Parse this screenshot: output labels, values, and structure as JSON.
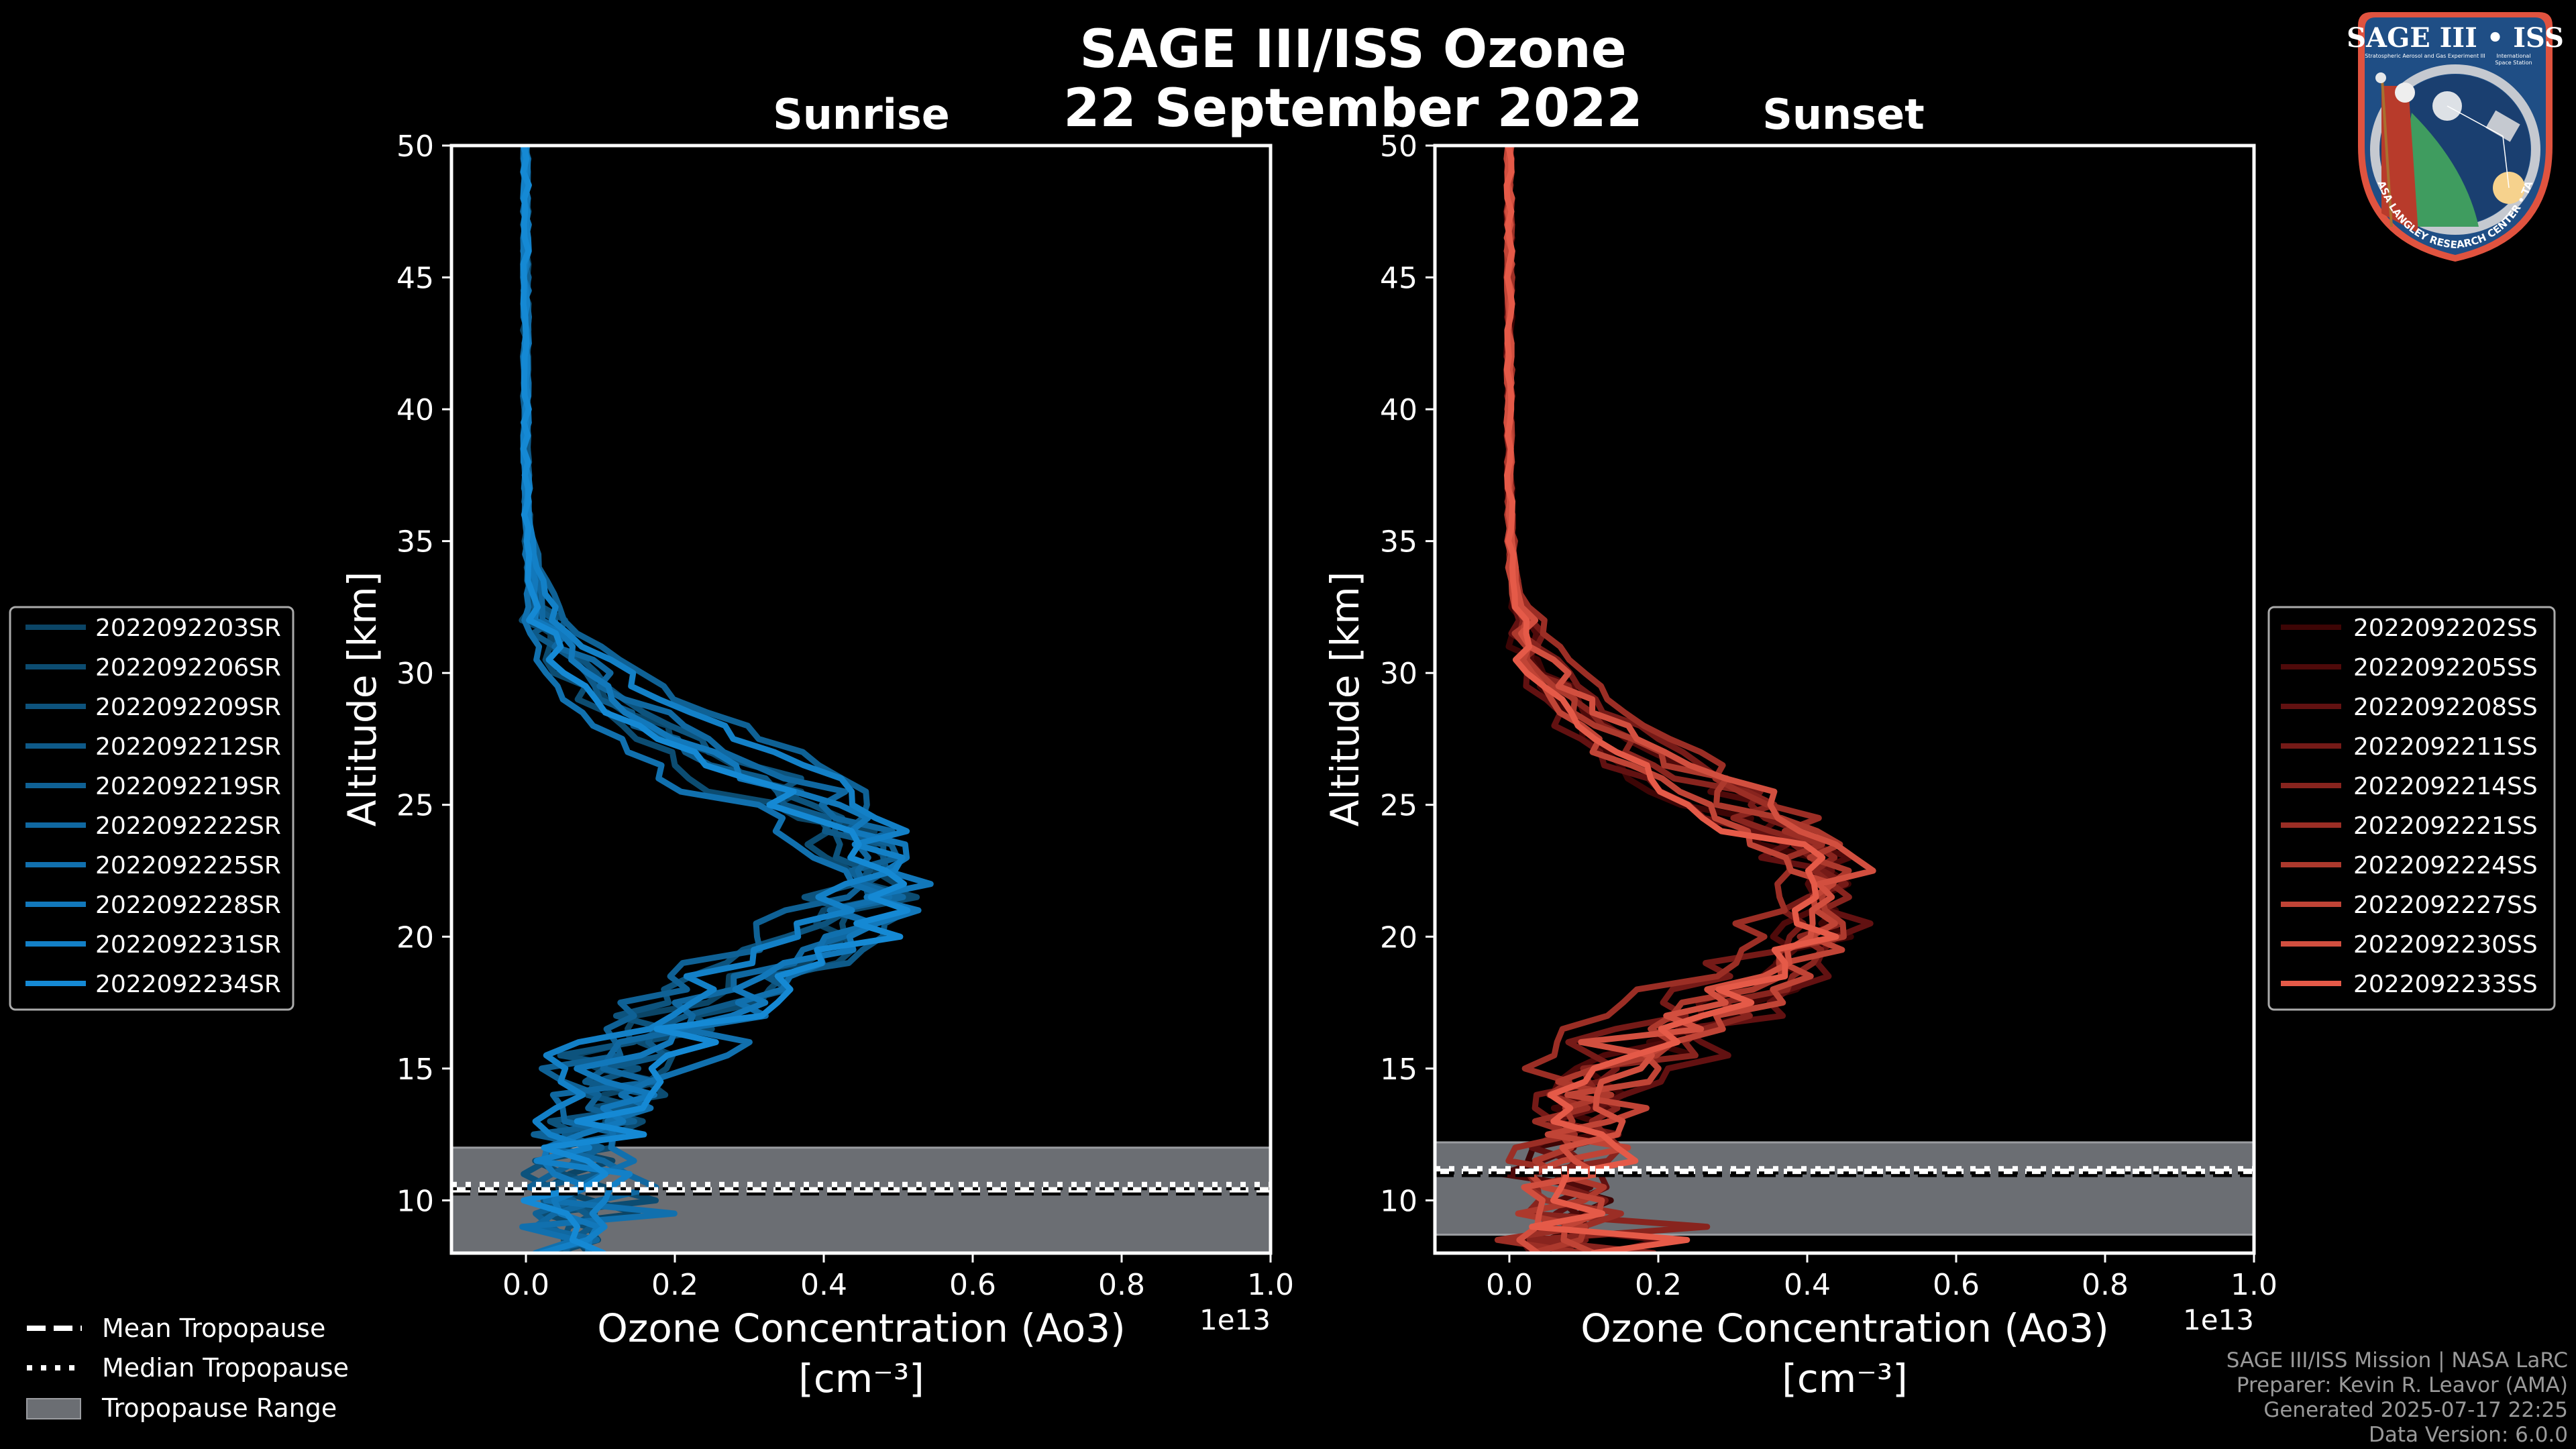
{
  "figure": {
    "title_line1": "SAGE III/ISS Ozone",
    "title_line2": "22 September 2022",
    "footer": [
      "SAGE III/ISS Mission | NASA LaRC",
      "Preparer: Kevin R. Leavor (AMA)",
      "Generated 2025-07-17 22:25",
      "Data Version: 6.0.0"
    ],
    "logo": {
      "title": "SAGE III • ISS",
      "left_caption": "Stratospheric Aerosol and Gas Experiment III",
      "right_caption_1": "International",
      "right_caption_2": "Space Station",
      "ring_text": "BALL • NASA LANGLEY RESEARCH CENTER • TAS-I • ESA"
    },
    "tropopause_legend": [
      {
        "label": "Mean Tropopause",
        "style": "dashed"
      },
      {
        "label": "Median Tropopause",
        "style": "dotted"
      },
      {
        "label": "Tropopause Range",
        "style": "patch"
      }
    ],
    "colors": {
      "background": "#000000",
      "tropopause_fill": "#6b6e73",
      "tropopause_edge": "#9a9ca0",
      "frame": "#ffffff"
    }
  },
  "chart_data": [
    {
      "type": "line",
      "id": "sunrise",
      "title": "Sunrise",
      "xlabel": "Ozone Concentration (Ao3)",
      "xlabel_units": "[cm⁻³]",
      "ylabel": "Altitude [km]",
      "x_offset_label": "1e13",
      "xlim": [
        -0.1,
        1.0
      ],
      "ylim": [
        8,
        50
      ],
      "xticks": [
        0.0,
        0.2,
        0.4,
        0.6,
        0.8,
        1.0
      ],
      "xtick_labels": [
        "0.0",
        "0.2",
        "0.4",
        "0.6",
        "0.8",
        "1.0"
      ],
      "yticks": [
        10,
        15,
        20,
        25,
        30,
        35,
        40,
        45,
        50
      ],
      "ytick_labels": [
        "10",
        "15",
        "20",
        "25",
        "30",
        "35",
        "40",
        "45",
        "50"
      ],
      "legend_position": "left",
      "tropopause": {
        "mean": 10.4,
        "median": 10.6,
        "range": [
          8.0,
          12.0
        ]
      },
      "series": [
        {
          "name": "2022092203SR",
          "color": "#0b4566",
          "peak_x": 0.46,
          "peak_alt": 22.5,
          "seed": 3
        },
        {
          "name": "2022092206SR",
          "color": "#0c4c71",
          "peak_x": 0.48,
          "peak_alt": 21.5,
          "seed": 6
        },
        {
          "name": "2022092209SR",
          "color": "#0d537d",
          "peak_x": 0.44,
          "peak_alt": 23.0,
          "seed": 9
        },
        {
          "name": "2022092212SR",
          "color": "#0e5a89",
          "peak_x": 0.5,
          "peak_alt": 22.0,
          "seed": 12
        },
        {
          "name": "2022092219SR",
          "color": "#0f6195",
          "peak_x": 0.47,
          "peak_alt": 24.0,
          "seed": 19
        },
        {
          "name": "2022092222SR",
          "color": "#1068a1",
          "peak_x": 0.49,
          "peak_alt": 22.8,
          "seed": 22
        },
        {
          "name": "2022092225SR",
          "color": "#1170ae",
          "peak_x": 0.45,
          "peak_alt": 21.0,
          "seed": 25
        },
        {
          "name": "2022092228SR",
          "color": "#1278bb",
          "peak_x": 0.51,
          "peak_alt": 22.3,
          "seed": 28
        },
        {
          "name": "2022092231SR",
          "color": "#1380c7",
          "peak_x": 0.48,
          "peak_alt": 23.5,
          "seed": 31
        },
        {
          "name": "2022092234SR",
          "color": "#1589d4",
          "peak_x": 0.5,
          "peak_alt": 21.8,
          "seed": 34
        }
      ]
    },
    {
      "type": "line",
      "id": "sunset",
      "title": "Sunset",
      "xlabel": "Ozone Concentration (Ao3)",
      "xlabel_units": "[cm⁻³]",
      "ylabel": "Altitude [km]",
      "x_offset_label": "1e13",
      "xlim": [
        -0.1,
        1.0
      ],
      "ylim": [
        8,
        50
      ],
      "xticks": [
        0.0,
        0.2,
        0.4,
        0.6,
        0.8,
        1.0
      ],
      "xtick_labels": [
        "0.0",
        "0.2",
        "0.4",
        "0.6",
        "0.8",
        "1.0"
      ],
      "yticks": [
        10,
        15,
        20,
        25,
        30,
        35,
        40,
        45,
        50
      ],
      "ytick_labels": [
        "10",
        "15",
        "20",
        "25",
        "30",
        "35",
        "40",
        "45",
        "50"
      ],
      "legend_position": "right",
      "tropopause": {
        "mean": 11.1,
        "median": 11.2,
        "range": [
          8.7,
          12.2
        ]
      },
      "series": [
        {
          "name": "2022092202SS",
          "color": "#3d0505",
          "peak_x": 0.44,
          "peak_alt": 21.0,
          "seed": 2
        },
        {
          "name": "2022092205SS",
          "color": "#4f0a0a",
          "peak_x": 0.43,
          "peak_alt": 22.0,
          "seed": 5
        },
        {
          "name": "2022092208SS",
          "color": "#621111",
          "peak_x": 0.45,
          "peak_alt": 20.5,
          "seed": 8
        },
        {
          "name": "2022092211SS",
          "color": "#751a17",
          "peak_x": 0.42,
          "peak_alt": 22.5,
          "seed": 11
        },
        {
          "name": "2022092214SS",
          "color": "#88241e",
          "peak_x": 0.46,
          "peak_alt": 21.5,
          "seed": 14
        },
        {
          "name": "2022092221SS",
          "color": "#9b2e25",
          "peak_x": 0.41,
          "peak_alt": 23.0,
          "seed": 21
        },
        {
          "name": "2022092224SS",
          "color": "#ad392d",
          "peak_x": 0.44,
          "peak_alt": 21.8,
          "seed": 24
        },
        {
          "name": "2022092227SS",
          "color": "#c04436",
          "peak_x": 0.43,
          "peak_alt": 20.8,
          "seed": 27
        },
        {
          "name": "2022092230SS",
          "color": "#d24f3f",
          "peak_x": 0.45,
          "peak_alt": 22.2,
          "seed": 30
        },
        {
          "name": "2022092233SS",
          "color": "#e55a48",
          "peak_x": 0.42,
          "peak_alt": 21.2,
          "seed": 33
        }
      ]
    }
  ]
}
